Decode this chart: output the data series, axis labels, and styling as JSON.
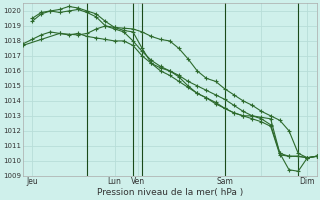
{
  "title": "Pression niveau de la mer( hPa )",
  "bg_color": "#cff0eb",
  "grid_color": "#b8ddd8",
  "line_color": "#2d6a2d",
  "ylim": [
    1009,
    1020.5
  ],
  "yticks": [
    1009,
    1010,
    1011,
    1012,
    1013,
    1014,
    1015,
    1016,
    1017,
    1018,
    1019,
    1020
  ],
  "xlim": [
    0,
    16
  ],
  "vlines": [
    3.5,
    6.0,
    6.5,
    11.0,
    15.0
  ],
  "xtick_positions": [
    0.5,
    5.0,
    6.25,
    9.0,
    13.0,
    15.5
  ],
  "xtick_labels": [
    "Jeu",
    "Lun",
    "Ven",
    "",
    "Sam",
    "Dim"
  ],
  "day_vlines": [
    3.5,
    6.0,
    6.5,
    11.0,
    15.0
  ],
  "series1": {
    "x": [
      0,
      1,
      2,
      3,
      3.5,
      4,
      4.5,
      5,
      5.5,
      6,
      6.5,
      7,
      7.5,
      8,
      8.5,
      9,
      9.5,
      10,
      10.5,
      11,
      11.5,
      12,
      12.5,
      13,
      13.5,
      14,
      14.5,
      15,
      15.5,
      16
    ],
    "y": [
      1017.7,
      1018.1,
      1018.5,
      1018.4,
      1018.5,
      1018.8,
      1019.0,
      1018.9,
      1018.85,
      1018.8,
      1018.6,
      1018.3,
      1018.1,
      1018.0,
      1017.5,
      1016.8,
      1016.0,
      1015.5,
      1015.3,
      1014.8,
      1014.4,
      1014.0,
      1013.7,
      1013.3,
      1013.0,
      1012.7,
      1012.0,
      1010.5,
      1010.2,
      1010.3
    ]
  },
  "series2": {
    "x": [
      0.5,
      1,
      1.5,
      2,
      2.5,
      3,
      3.5,
      4,
      4.5,
      5,
      5.5,
      6,
      6.5,
      7,
      7.5,
      8,
      8.5,
      9,
      9.5,
      10,
      10.5,
      11,
      11.5,
      12,
      12.5,
      13,
      13.5,
      14,
      14.5,
      15,
      15.5,
      16
    ],
    "y": [
      1019.3,
      1019.8,
      1020.0,
      1019.9,
      1020.0,
      1020.1,
      1019.9,
      1019.6,
      1019.0,
      1018.8,
      1018.6,
      1018.0,
      1017.3,
      1016.7,
      1016.3,
      1016.0,
      1015.7,
      1015.3,
      1015.0,
      1014.7,
      1014.4,
      1014.1,
      1013.7,
      1013.3,
      1013.0,
      1012.8,
      1012.4,
      1010.5,
      1009.4,
      1009.3,
      1010.2,
      1010.3
    ]
  },
  "series3": {
    "x": [
      0.5,
      1,
      1.5,
      2,
      2.5,
      3,
      3.5,
      4,
      4.5,
      5,
      5.5,
      6,
      6.5,
      7,
      7.5,
      8,
      8.5,
      9,
      9.5,
      10,
      10.5,
      11,
      11.5,
      12,
      12.5,
      13,
      13.5,
      14,
      14.5,
      15,
      15.5,
      16
    ],
    "y": [
      1019.5,
      1019.9,
      1020.0,
      1020.1,
      1020.3,
      1020.2,
      1020.0,
      1019.8,
      1019.3,
      1018.9,
      1018.7,
      1018.6,
      1017.5,
      1016.5,
      1016.2,
      1016.0,
      1015.6,
      1015.0,
      1014.5,
      1014.2,
      1013.9,
      1013.5,
      1013.2,
      1013.0,
      1013.0,
      1012.9,
      1012.8,
      1010.5,
      1010.3,
      1010.3,
      1010.2,
      1010.3
    ]
  },
  "series4": {
    "x": [
      0,
      0.5,
      1,
      1.5,
      2,
      2.5,
      3,
      3.5,
      4,
      4.5,
      5,
      5.5,
      6,
      6.5,
      7,
      7.5,
      8,
      8.5,
      9,
      9.5,
      10,
      10.5,
      11,
      11.5,
      12,
      12.5,
      13,
      13.5,
      14,
      14.5,
      15,
      15.5,
      16
    ],
    "y": [
      1017.8,
      1018.1,
      1018.4,
      1018.6,
      1018.5,
      1018.4,
      1018.5,
      1018.3,
      1018.2,
      1018.1,
      1018.0,
      1018.0,
      1017.7,
      1017.0,
      1016.5,
      1016.0,
      1015.7,
      1015.3,
      1014.9,
      1014.5,
      1014.2,
      1013.8,
      1013.5,
      1013.2,
      1013.0,
      1012.8,
      1012.6,
      1012.3,
      1010.4,
      1010.3,
      1010.3,
      1010.2,
      1010.3
    ]
  }
}
